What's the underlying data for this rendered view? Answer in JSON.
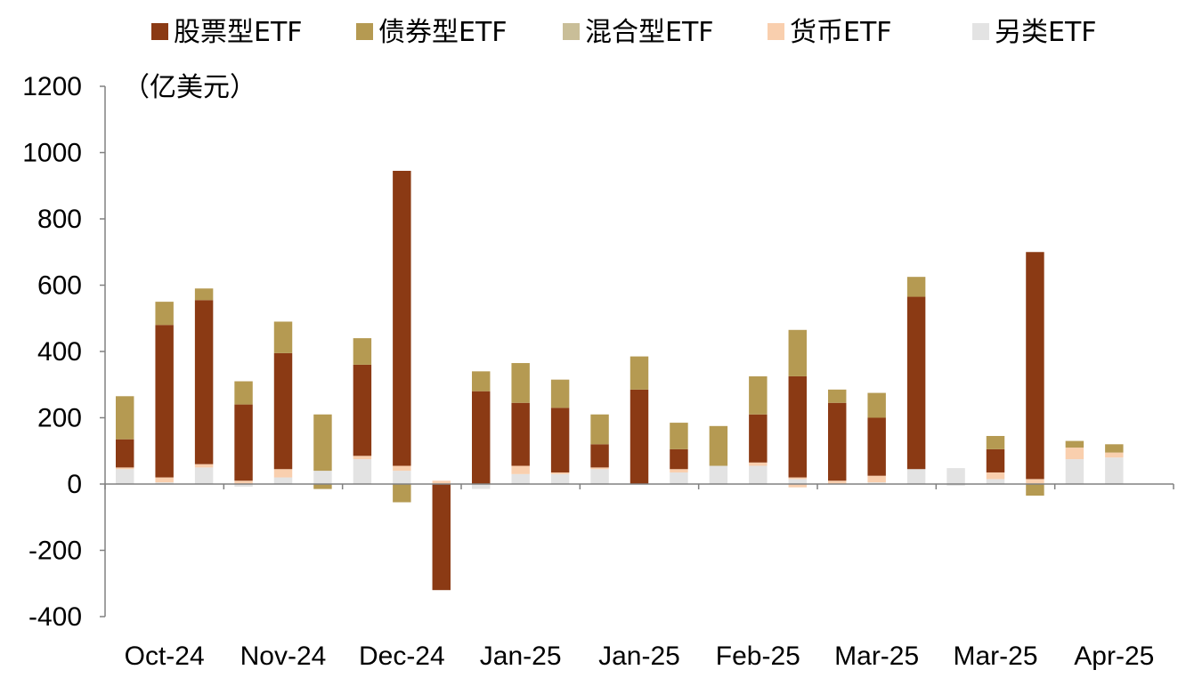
{
  "chart_data": {
    "type": "bar",
    "stacked": true,
    "unit_label": "（亿美元）",
    "ylim": [
      -400,
      1200
    ],
    "yticks": [
      -400,
      -200,
      0,
      200,
      400,
      600,
      800,
      1000,
      1200
    ],
    "ytick_labels": [
      "-400",
      "-200",
      "0",
      "200",
      "400",
      "600",
      "800",
      "1000",
      "1200"
    ],
    "x_tick_labels": [
      "Oct-24",
      "Nov-24",
      "Dec-24",
      "Jan-25",
      "Jan-25",
      "Feb-25",
      "Mar-25",
      "Mar-25",
      "Apr-25"
    ],
    "bar_count": 27,
    "legend_position": "top",
    "colors": {
      "股票型ETF": "#8B3A14",
      "债券型ETF": "#B59A52",
      "混合型ETF": "#C9BE98",
      "货币ETF": "#F9CFAE",
      "另类ETF": "#E3E3E3"
    },
    "series": [
      {
        "name": "股票型ETF",
        "values": [
          85,
          460,
          495,
          230,
          350,
          0,
          275,
          890,
          -320,
          280,
          190,
          195,
          70,
          285,
          60,
          0,
          145,
          305,
          235,
          175,
          520,
          0,
          70,
          685,
          0,
          0,
          0
        ]
      },
      {
        "name": "债券型ETF",
        "values": [
          130,
          70,
          35,
          70,
          95,
          170,
          80,
          0,
          0,
          60,
          120,
          85,
          90,
          100,
          80,
          120,
          115,
          140,
          40,
          75,
          60,
          0,
          40,
          0,
          20,
          25,
          0
        ]
      },
      {
        "name": "混合型ETF",
        "values": [
          0,
          0,
          0,
          0,
          0,
          0,
          0,
          0,
          0,
          0,
          0,
          0,
          0,
          0,
          0,
          0,
          0,
          0,
          0,
          0,
          0,
          0,
          0,
          0,
          0,
          0,
          0
        ]
      },
      {
        "name": "货币ETF",
        "values": [
          5,
          15,
          10,
          10,
          25,
          0,
          10,
          15,
          10,
          0,
          25,
          5,
          5,
          0,
          10,
          0,
          10,
          5,
          10,
          20,
          0,
          0,
          20,
          15,
          35,
          15,
          0
        ]
      },
      {
        "name": "另类ETF",
        "values": [
          45,
          5,
          50,
          0,
          20,
          40,
          75,
          40,
          0,
          0,
          30,
          30,
          45,
          0,
          35,
          55,
          55,
          15,
          0,
          5,
          45,
          48,
          15,
          0,
          75,
          80,
          0
        ]
      }
    ],
    "negative_values": {
      "债券型ETF": [
        0,
        0,
        0,
        0,
        0,
        -15,
        0,
        -55,
        0,
        0,
        0,
        0,
        0,
        0,
        0,
        0,
        0,
        0,
        0,
        0,
        0,
        0,
        0,
        -35,
        0,
        0,
        0
      ],
      "另类ETF": [
        0,
        0,
        0,
        -8,
        0,
        0,
        0,
        0,
        0,
        -15,
        0,
        0,
        0,
        0,
        0,
        0,
        0,
        0,
        0,
        0,
        0,
        -5,
        0,
        0,
        0,
        0,
        0
      ],
      "货币ETF": [
        0,
        0,
        0,
        0,
        0,
        0,
        0,
        0,
        0,
        0,
        0,
        0,
        0,
        0,
        0,
        0,
        0,
        -10,
        0,
        0,
        0,
        0,
        0,
        0,
        0,
        0,
        0
      ]
    }
  }
}
